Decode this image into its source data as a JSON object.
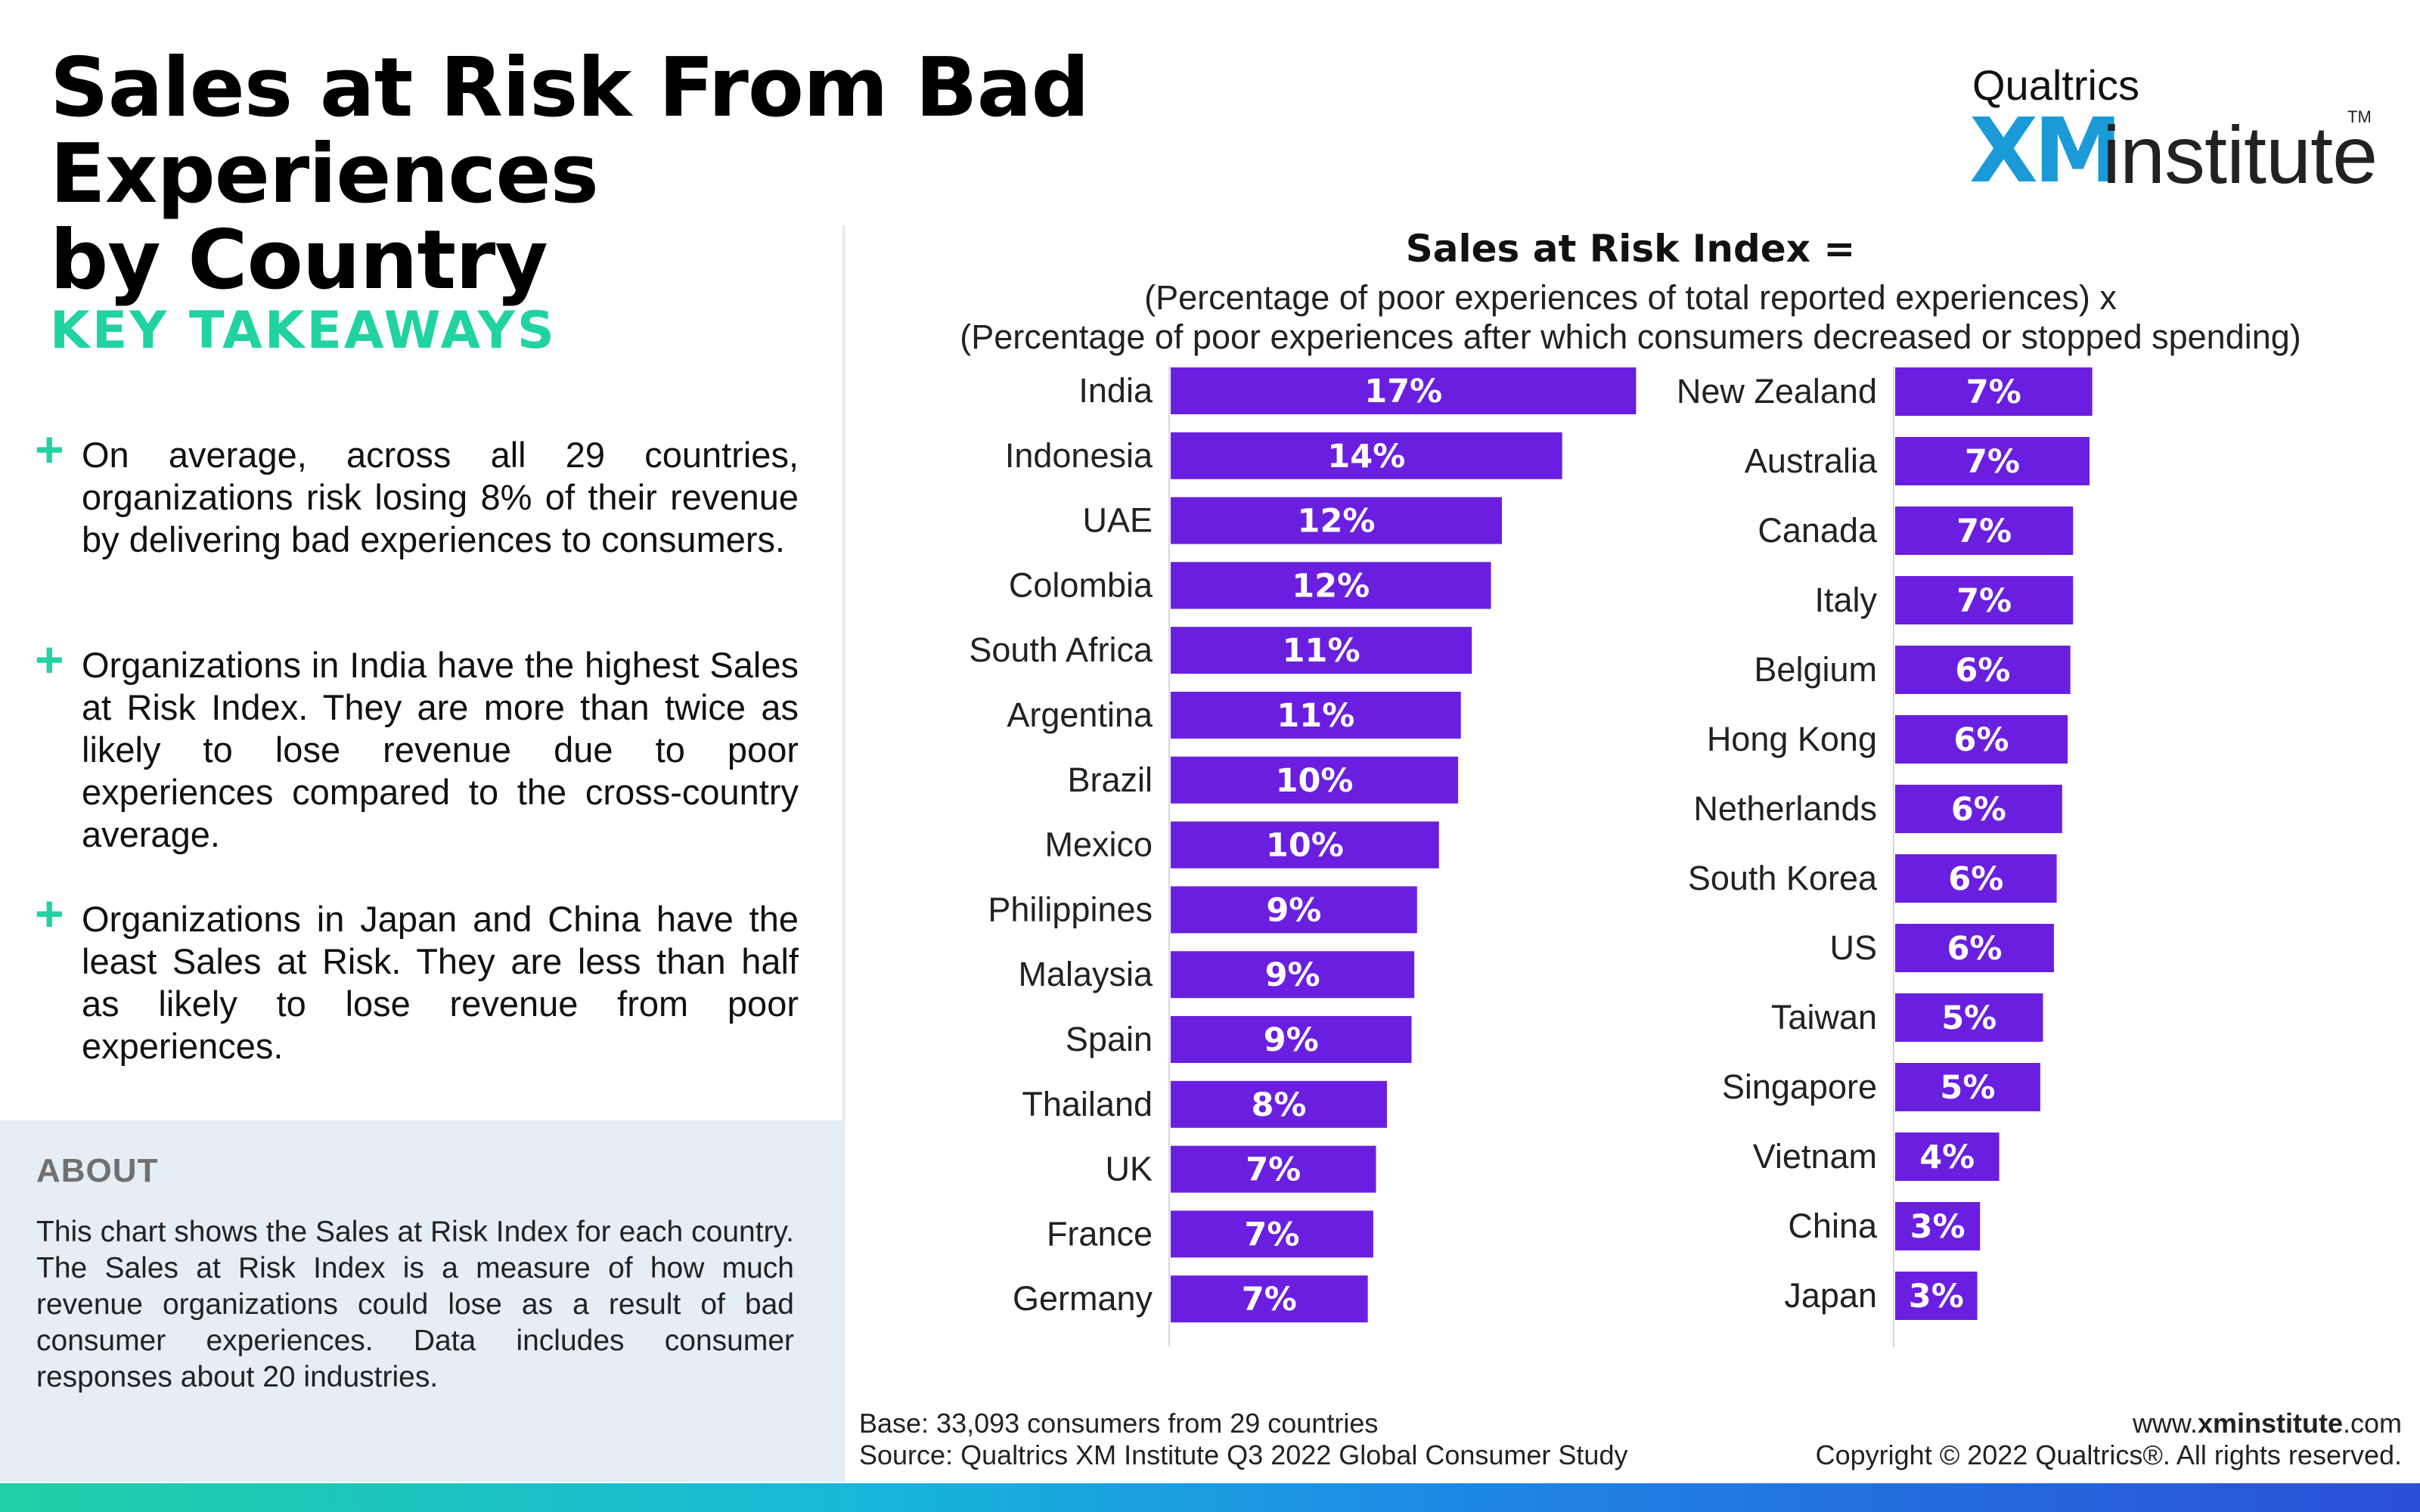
{
  "title": {
    "line1": "Sales at Risk From Bad Experiences",
    "line2": "by Country"
  },
  "logo": {
    "brand": "Qualtrics",
    "xm": "XM",
    "institute": "institute",
    "tm": "TM"
  },
  "takeaways": {
    "heading": "KEY TAKEAWAYS",
    "items": [
      "On average, across all 29 countries, organizations risk losing 8% of their revenue by delivering bad experiences to consumers.",
      "Organizations in India have the highest Sales at Risk Index. They are more than twice as likely to lose revenue due to poor experiences compared to the cross-country average.",
      "Organizations in Japan and China have the least Sales at Risk. They are less than half as likely to lose revenue from poor experiences."
    ]
  },
  "about": {
    "heading": "ABOUT",
    "body": "This chart shows the Sales at Risk Index for each country. The Sales at Risk Index is a measure of how much revenue organizations could lose as a result of bad consumer experiences. Data includes consumer responses about 20 industries."
  },
  "formula": {
    "title": "Sales at Risk Index =",
    "line1": "(Percentage of poor experiences of total reported experiences) x",
    "line2": "(Percentage of poor experiences after which consumers decreased or stopped spending)"
  },
  "footer": {
    "base": "Base: 33,093 consumers from 29 countries",
    "source": "Source: Qualtrics XM Institute Q3 2022 Global Consumer Study",
    "website_prefix": "www.",
    "website_bold": "xminstitute",
    "website_suffix": ".com",
    "copyright": "Copyright © 2022 Qualtrics®. All rights reserved."
  },
  "chart_data": {
    "type": "bar",
    "orientation": "horizontal",
    "bar_color": "#6a1fe0",
    "title": "Sales at Risk Index =",
    "panels": [
      {
        "categories": [
          "India",
          "Indonesia",
          "UAE",
          "Colombia",
          "South Africa",
          "Argentina",
          "Brazil",
          "Mexico",
          "Philippines",
          "Malaysia",
          "Spain",
          "Thailand",
          "UK",
          "France",
          "Germany"
        ],
        "values": [
          17.0,
          14.3,
          12.1,
          11.7,
          11.0,
          10.6,
          10.5,
          9.8,
          9.0,
          8.9,
          8.8,
          7.9,
          7.5,
          7.4,
          7.2
        ],
        "labels": [
          "17%",
          "14%",
          "12%",
          "12%",
          "11%",
          "11%",
          "10%",
          "10%",
          "9%",
          "9%",
          "9%",
          "8%",
          "7%",
          "7%",
          "7%"
        ]
      },
      {
        "categories": [
          "New Zealand",
          "Australia",
          "Canada",
          "Italy",
          "Belgium",
          "Hong Kong",
          "Netherlands",
          "South Korea",
          "US",
          "Taiwan",
          "Singapore",
          "Vietnam",
          "China",
          "Japan"
        ],
        "values": [
          7.2,
          7.1,
          6.5,
          6.5,
          6.4,
          6.3,
          6.1,
          5.9,
          5.8,
          5.4,
          5.3,
          3.8,
          3.1,
          3.0
        ],
        "labels": [
          "7%",
          "7%",
          "7%",
          "7%",
          "6%",
          "6%",
          "6%",
          "6%",
          "6%",
          "5%",
          "5%",
          "4%",
          "3%",
          "3%"
        ]
      }
    ]
  }
}
